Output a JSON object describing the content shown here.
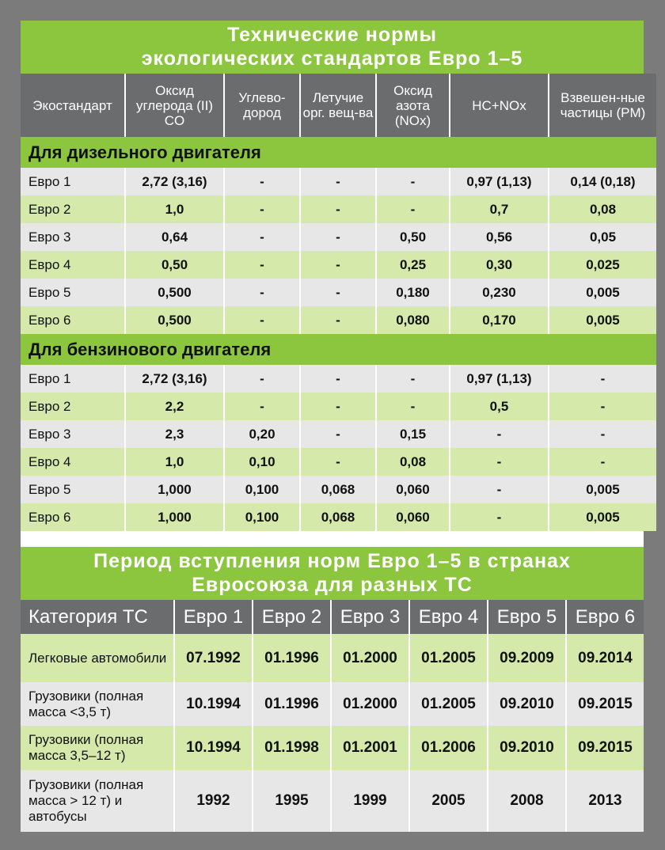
{
  "table1": {
    "title_line1": "Технические нормы",
    "title_line2": "экологических стандартов Евро 1–5",
    "headers": [
      "Экостандарт",
      "Оксид углерода (II) CO",
      "Углево-дород",
      "Летучие орг. вещ-ва",
      "Оксид азота (NOx)",
      "HC+NOx",
      "Взвешен-ные частицы (PM)"
    ],
    "sections": [
      {
        "label": "Для дизельного двигателя",
        "rows": [
          [
            "Евро 1",
            "2,72 (3,16)",
            "-",
            "-",
            "-",
            "0,97 (1,13)",
            "0,14 (0,18)"
          ],
          [
            "Евро 2",
            "1,0",
            "-",
            "-",
            "-",
            "0,7",
            "0,08"
          ],
          [
            "Евро 3",
            "0,64",
            "-",
            "-",
            "0,50",
            "0,56",
            "0,05"
          ],
          [
            "Евро 4",
            "0,50",
            "-",
            "-",
            "0,25",
            "0,30",
            "0,025"
          ],
          [
            "Евро 5",
            "0,500",
            "-",
            "-",
            "0,180",
            "0,230",
            "0,005"
          ],
          [
            "Евро 6",
            "0,500",
            "-",
            "-",
            "0,080",
            "0,170",
            "0,005"
          ]
        ]
      },
      {
        "label": "Для бензинового двигателя",
        "rows": [
          [
            "Евро 1",
            "2,72 (3,16)",
            "-",
            "-",
            "-",
            "0,97 (1,13)",
            "-"
          ],
          [
            "Евро 2",
            "2,2",
            "-",
            "-",
            "-",
            "0,5",
            "-"
          ],
          [
            "Евро 3",
            "2,3",
            "0,20",
            "-",
            "0,15",
            "-",
            "-"
          ],
          [
            "Евро 4",
            "1,0",
            "0,10",
            "-",
            "0,08",
            "-",
            "-"
          ],
          [
            "Евро 5",
            "1,000",
            "0,100",
            "0,068",
            "0,060",
            "-",
            "0,005"
          ],
          [
            "Евро 6",
            "1,000",
            "0,100",
            "0,068",
            "0,060",
            "-",
            "0,005"
          ]
        ]
      }
    ]
  },
  "table2": {
    "title_line1": "Период вступления норм Евро 1–5 в странах",
    "title_line2": "Евросоюза для разных ТС",
    "headers": [
      "Категория ТС",
      "Евро 1",
      "Евро 2",
      "Евро 3",
      "Евро 4",
      "Евро 5",
      "Евро 6"
    ],
    "rows": [
      [
        "Легковые автомобили",
        "07.1992",
        "01.1996",
        "01.2000",
        "01.2005",
        "09.2009",
        "09.2014"
      ],
      [
        "Грузовики (полная масса <3,5 т)",
        "10.1994",
        "01.1996",
        "01.2000",
        "01.2005",
        "09.2010",
        "09.2015"
      ],
      [
        "Грузовики (полная масса 3,5–12 т)",
        "10.1994",
        "01.1998",
        "01.2001",
        "01.2006",
        "09.2010",
        "09.2015"
      ],
      [
        "Грузовики (полная масса > 12 т) и автобусы",
        "1992",
        "1995",
        "1999",
        "2005",
        "2008",
        "2013"
      ]
    ]
  },
  "colors": {
    "background": "#7b7b7b",
    "green": "#8cc63e",
    "light_green": "#d5e9aa",
    "header_gray": "#6b6c6e",
    "row_gray": "#e7e7e7"
  }
}
